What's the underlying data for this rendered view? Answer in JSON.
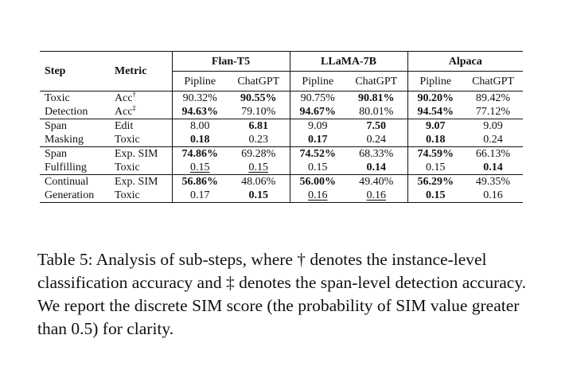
{
  "table": {
    "header": {
      "step": "Step",
      "metric": "Metric",
      "groups": [
        "Flan-T5",
        "LLaMA-7B",
        "Alpaca"
      ],
      "subcols": [
        "Pipline",
        "ChatGPT",
        "Pipline",
        "ChatGPT",
        "Pipline",
        "ChatGPT"
      ]
    },
    "blocks": [
      {
        "step": [
          "Toxic",
          "Detection"
        ],
        "rows": [
          {
            "metric": "Acc",
            "mark": "†",
            "values": [
              "90.32%",
              "90.55%",
              "90.75%",
              "90.81%",
              "90.20%",
              "89.42%"
            ],
            "bold": [
              false,
              true,
              false,
              true,
              true,
              false
            ],
            "underline": [
              false,
              false,
              false,
              false,
              false,
              false
            ]
          },
          {
            "metric": "Acc",
            "mark": "‡",
            "values": [
              "94.63%",
              "79.10%",
              "94.67%",
              "80.01%",
              "94.54%",
              "77.12%"
            ],
            "bold": [
              true,
              false,
              true,
              false,
              true,
              false
            ],
            "underline": [
              false,
              false,
              false,
              false,
              false,
              false
            ]
          }
        ]
      },
      {
        "step": [
          "Span",
          "Masking"
        ],
        "rows": [
          {
            "metric": "Edit",
            "mark": "",
            "values": [
              "8.00",
              "6.81",
              "9.09",
              "7.50",
              "9.07",
              "9.09"
            ],
            "bold": [
              false,
              true,
              false,
              true,
              true,
              false
            ],
            "underline": [
              false,
              false,
              false,
              false,
              false,
              false
            ]
          },
          {
            "metric": "Toxic",
            "mark": "",
            "values": [
              "0.18",
              "0.23",
              "0.17",
              "0.24",
              "0.18",
              "0.24"
            ],
            "bold": [
              true,
              false,
              true,
              false,
              true,
              false
            ],
            "underline": [
              false,
              false,
              false,
              false,
              false,
              false
            ]
          }
        ]
      },
      {
        "step": [
          "Span",
          "Fulfilling"
        ],
        "rows": [
          {
            "metric": "Exp. SIM",
            "mark": "",
            "values": [
              "74.86%",
              "69.28%",
              "74.52%",
              "68.33%",
              "74.59%",
              "66.13%"
            ],
            "bold": [
              true,
              false,
              true,
              false,
              true,
              false
            ],
            "underline": [
              false,
              false,
              false,
              false,
              false,
              false
            ]
          },
          {
            "metric": "Toxic",
            "mark": "",
            "values": [
              "0.15",
              "0.15",
              "0.15",
              "0.14",
              "0.15",
              "0.14"
            ],
            "bold": [
              false,
              false,
              false,
              true,
              false,
              true
            ],
            "underline": [
              true,
              true,
              false,
              false,
              false,
              false
            ]
          }
        ]
      },
      {
        "step": [
          "Continual",
          "Generation"
        ],
        "rows": [
          {
            "metric": "Exp. SIM",
            "mark": "",
            "values": [
              "56.86%",
              "48.06%",
              "56.00%",
              "49.40%",
              "56.29%",
              "49.35%"
            ],
            "bold": [
              true,
              false,
              true,
              false,
              true,
              false
            ],
            "underline": [
              false,
              false,
              false,
              false,
              false,
              false
            ]
          },
          {
            "metric": "Toxic",
            "mark": "",
            "values": [
              "0.17",
              "0.15",
              "0.16",
              "0.16",
              "0.15",
              "0.16"
            ],
            "bold": [
              false,
              true,
              false,
              false,
              true,
              false
            ],
            "underline": [
              false,
              false,
              true,
              true,
              false,
              false
            ]
          }
        ]
      }
    ]
  },
  "caption": "Table 5: Analysis of sub-steps, where † denotes the instance-level classification accuracy and ‡ denotes the span-level detection accuracy. We report the discrete SIM score (the probability of SIM value greater than 0.5) for clarity."
}
